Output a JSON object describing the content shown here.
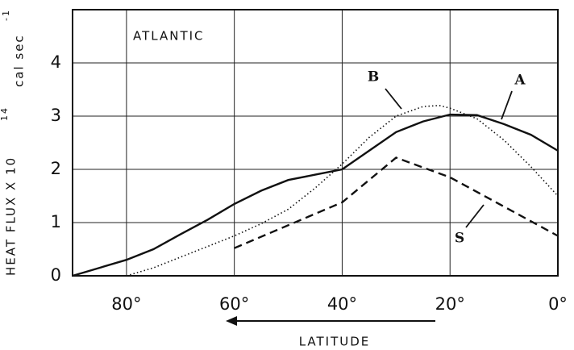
{
  "chart_data": {
    "type": "line",
    "annotation": "ATLANTIC",
    "xlabel": "LATITUDE",
    "ylabel": {
      "main": "HEAT FLUX  X 10",
      "exp": "14",
      "unit": "cal sec",
      "unit_exp": "-1"
    },
    "xlim": [
      90,
      0
    ],
    "ylim": [
      0,
      5
    ],
    "xticks": [
      {
        "value": 80,
        "label": "80°"
      },
      {
        "value": 60,
        "label": "60°"
      },
      {
        "value": 40,
        "label": "40°"
      },
      {
        "value": 20,
        "label": "20°"
      },
      {
        "value": 0,
        "label": "0°"
      }
    ],
    "yticks": [
      0,
      1,
      2,
      3,
      4
    ],
    "grid": true,
    "series": [
      {
        "name": "A",
        "color": "#111111",
        "style": "solid",
        "x": [
          90,
          85,
          80,
          75,
          70,
          65,
          60,
          55,
          50,
          45,
          40,
          35,
          30,
          25,
          20,
          15,
          10,
          5,
          0
        ],
        "values": [
          0,
          0.15,
          0.3,
          0.5,
          0.78,
          1.05,
          1.35,
          1.6,
          1.8,
          1.9,
          2.0,
          2.35,
          2.7,
          2.9,
          3.03,
          3.02,
          2.85,
          2.65,
          2.35
        ]
      },
      {
        "name": "B",
        "color": "#111111",
        "style": "dotted",
        "x": [
          80,
          75,
          70,
          65,
          60,
          55,
          50,
          45,
          40,
          35,
          30,
          25,
          22,
          20,
          15,
          10,
          5,
          0
        ],
        "values": [
          0,
          0.15,
          0.35,
          0.55,
          0.75,
          0.98,
          1.25,
          1.65,
          2.1,
          2.6,
          3.0,
          3.18,
          3.2,
          3.15,
          2.95,
          2.55,
          2.05,
          1.5
        ]
      },
      {
        "name": "S",
        "color": "#111111",
        "style": "dashed",
        "x": [
          60,
          40,
          30,
          20,
          0
        ],
        "values": [
          0.52,
          1.38,
          2.22,
          1.85,
          0.75
        ]
      }
    ]
  }
}
